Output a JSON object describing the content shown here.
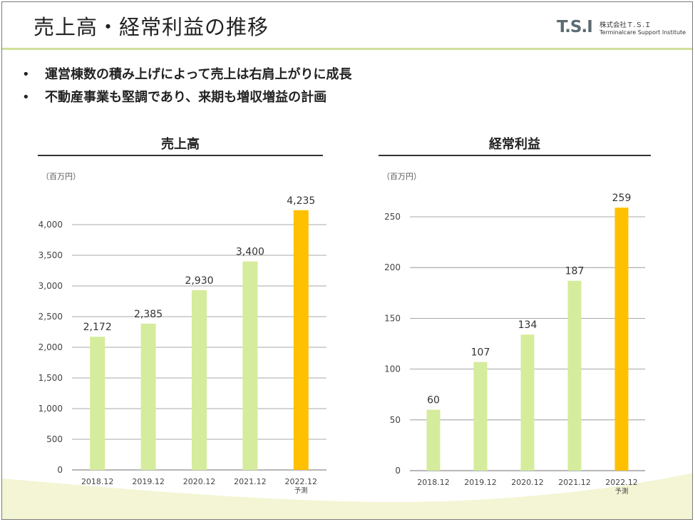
{
  "page": {
    "title": "売上高・経常利益の推移",
    "logo": {
      "mark_text": "T.S.I",
      "company_jp": "株式会社Ｔ.Ｓ.Ｉ",
      "company_en": "Terminalcare Support Institute"
    },
    "bullets": [
      "運営棟数の積み上げによって売上は右肩上がりに成長",
      "不動産事業も堅調であり、来期も増収増益の計画"
    ],
    "bullet_mark": "•"
  },
  "colors": {
    "actual_bar": "#d5ec9c",
    "forecast_bar": "#ffc000",
    "header_rule": "#cfe09a",
    "grid": "#8c8c8c",
    "wave": "#f3f5d4"
  },
  "chart_data": [
    {
      "type": "bar",
      "title": "売上高",
      "unit_label": "（百万円）",
      "categories": [
        "2018.12",
        "2019.12",
        "2020.12",
        "2021.12",
        "2022.12"
      ],
      "category_sublabels": [
        "",
        "",
        "",
        "",
        "予測"
      ],
      "values": [
        2172,
        2385,
        2930,
        3400,
        4235
      ],
      "value_labels": [
        "2,172",
        "2,385",
        "2,930",
        "3,400",
        "4,235"
      ],
      "forecast_flags": [
        false,
        false,
        false,
        false,
        true
      ],
      "ylim": [
        0,
        4000
      ],
      "yticks": [
        0,
        500,
        1000,
        1500,
        2000,
        2500,
        3000,
        3500,
        4000
      ],
      "ytick_labels": [
        "0",
        "500",
        "1,000",
        "1,500",
        "2,000",
        "2,500",
        "3,000",
        "3,500",
        "4,000"
      ],
      "grid": true,
      "xlabel": "",
      "ylabel": ""
    },
    {
      "type": "bar",
      "title": "経常利益",
      "unit_label": "（百万円）",
      "categories": [
        "2018.12",
        "2019.12",
        "2020.12",
        "2021.12",
        "2022.12"
      ],
      "category_sublabels": [
        "",
        "",
        "",
        "",
        "予測"
      ],
      "values": [
        60,
        107,
        134,
        187,
        259
      ],
      "value_labels": [
        "60",
        "107",
        "134",
        "187",
        "259"
      ],
      "forecast_flags": [
        false,
        false,
        false,
        false,
        true
      ],
      "ylim": [
        0,
        250
      ],
      "yticks": [
        0,
        50,
        100,
        150,
        200,
        250
      ],
      "ytick_labels": [
        "0",
        "50",
        "100",
        "150",
        "200",
        "250"
      ],
      "grid": true,
      "xlabel": "",
      "ylabel": ""
    }
  ]
}
